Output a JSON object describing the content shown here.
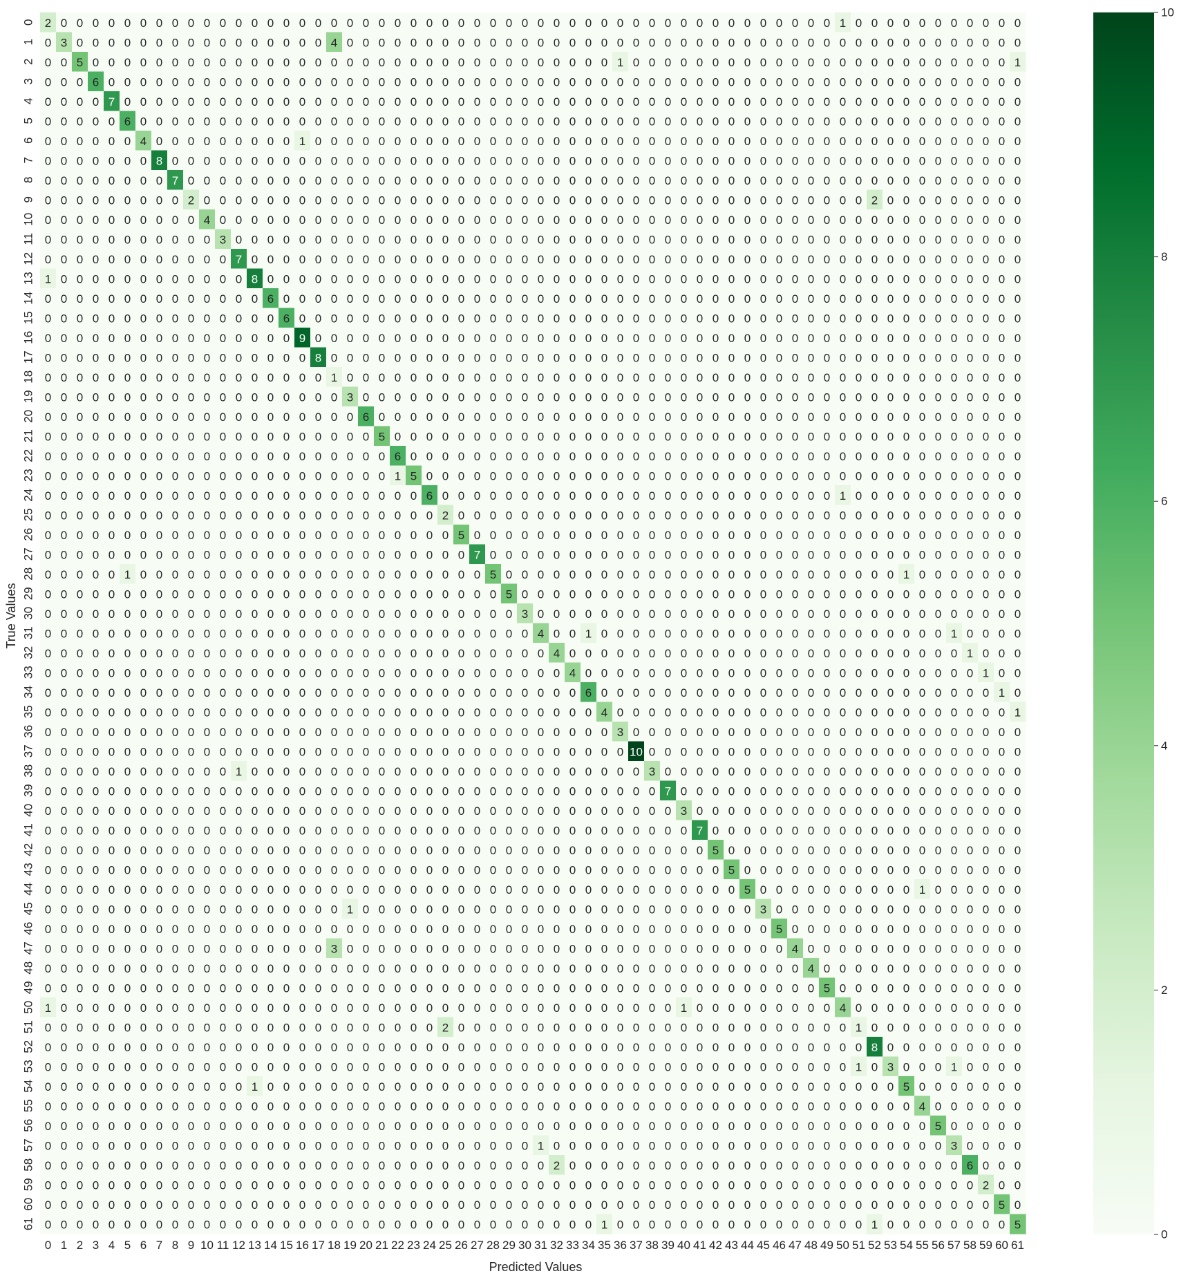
{
  "chart_data": {
    "type": "heatmap",
    "title": "",
    "xlabel": "Predicted Values",
    "ylabel": "True Values",
    "labels": [
      "0",
      "1",
      "2",
      "3",
      "4",
      "5",
      "6",
      "7",
      "8",
      "9",
      "10",
      "11",
      "12",
      "13",
      "14",
      "15",
      "16",
      "17",
      "18",
      "19",
      "20",
      "21",
      "22",
      "23",
      "24",
      "25",
      "26",
      "27",
      "28",
      "29",
      "30",
      "31",
      "32",
      "33",
      "34",
      "35",
      "36",
      "37",
      "38",
      "39",
      "40",
      "41",
      "42",
      "43",
      "44",
      "45",
      "46",
      "47",
      "48",
      "49",
      "50",
      "51",
      "52",
      "53",
      "54",
      "55",
      "56",
      "57",
      "58",
      "59",
      "60",
      "61"
    ],
    "diagonal": [
      2,
      3,
      5,
      6,
      7,
      6,
      4,
      8,
      7,
      2,
      4,
      3,
      7,
      8,
      6,
      6,
      9,
      8,
      1,
      3,
      6,
      5,
      6,
      5,
      6,
      2,
      5,
      7,
      5,
      5,
      3,
      4,
      4,
      4,
      6,
      4,
      3,
      10,
      3,
      7,
      3,
      7,
      5,
      5,
      5,
      3,
      5,
      4,
      4,
      5,
      4,
      1,
      8,
      3,
      5,
      4,
      5,
      3,
      6,
      2,
      5,
      5
    ],
    "off_diagonal": [
      {
        "row": 0,
        "col": 50,
        "value": 1
      },
      {
        "row": 1,
        "col": 18,
        "value": 4
      },
      {
        "row": 2,
        "col": 36,
        "value": 1
      },
      {
        "row": 2,
        "col": 61,
        "value": 1
      },
      {
        "row": 6,
        "col": 16,
        "value": 1
      },
      {
        "row": 9,
        "col": 52,
        "value": 2
      },
      {
        "row": 13,
        "col": 0,
        "value": 1
      },
      {
        "row": 23,
        "col": 22,
        "value": 1
      },
      {
        "row": 24,
        "col": 50,
        "value": 1
      },
      {
        "row": 28,
        "col": 5,
        "value": 1
      },
      {
        "row": 28,
        "col": 54,
        "value": 1
      },
      {
        "row": 31,
        "col": 34,
        "value": 1
      },
      {
        "row": 31,
        "col": 57,
        "value": 1
      },
      {
        "row": 32,
        "col": 58,
        "value": 1
      },
      {
        "row": 33,
        "col": 59,
        "value": 1
      },
      {
        "row": 34,
        "col": 60,
        "value": 1
      },
      {
        "row": 35,
        "col": 61,
        "value": 1
      },
      {
        "row": 38,
        "col": 12,
        "value": 1
      },
      {
        "row": 44,
        "col": 55,
        "value": 1
      },
      {
        "row": 45,
        "col": 19,
        "value": 1
      },
      {
        "row": 47,
        "col": 18,
        "value": 3
      },
      {
        "row": 50,
        "col": 0,
        "value": 1
      },
      {
        "row": 50,
        "col": 40,
        "value": 1
      },
      {
        "row": 51,
        "col": 25,
        "value": 2
      },
      {
        "row": 53,
        "col": 51,
        "value": 1
      },
      {
        "row": 53,
        "col": 57,
        "value": 1
      },
      {
        "row": 54,
        "col": 13,
        "value": 1
      },
      {
        "row": 57,
        "col": 31,
        "value": 1
      },
      {
        "row": 58,
        "col": 32,
        "value": 2
      },
      {
        "row": 61,
        "col": 35,
        "value": 1
      },
      {
        "row": 61,
        "col": 52,
        "value": 1
      }
    ],
    "vmin": 0,
    "vmax": 10,
    "colorbar_ticks": [
      "0",
      "2",
      "4",
      "6",
      "8",
      "10"
    ],
    "colormap": "Greens",
    "colors": {
      "low": "#f7fcf5",
      "high": "#00441b",
      "text_dark": "#262626",
      "text_light": "#ffffff"
    },
    "annotations": true,
    "grid": false,
    "legend": "colorbar-right"
  }
}
